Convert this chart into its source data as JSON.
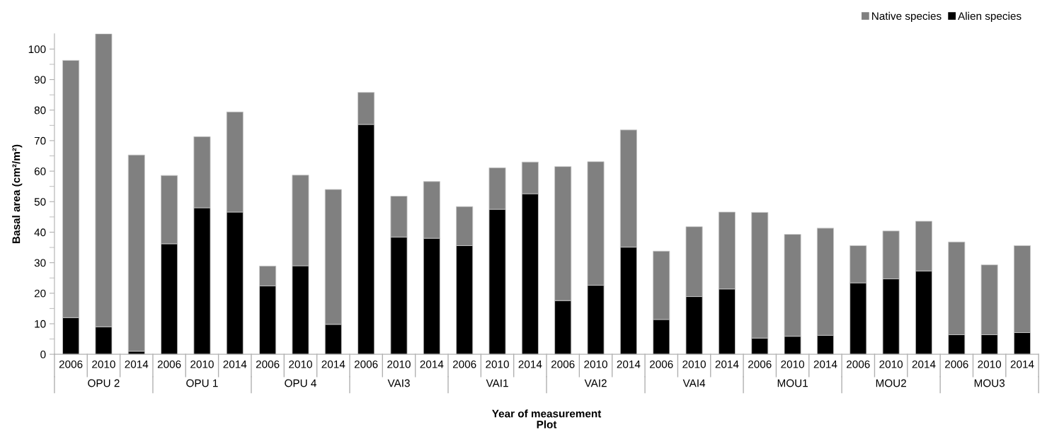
{
  "chart_data": {
    "type": "bar",
    "stacked": true,
    "xlabel": "Year of measurement\nPlot",
    "ylabel": "Basal area (cm²/m²)",
    "categories": [
      "2006",
      "2010",
      "2014",
      "2006",
      "2010",
      "2014",
      "2006",
      "2010",
      "2014",
      "2006",
      "2010",
      "2014",
      "2006",
      "2010",
      "2014",
      "2006",
      "2010",
      "2014",
      "2006",
      "2010",
      "2014",
      "2006",
      "2010",
      "2014",
      "2006",
      "2010",
      "2014",
      "2006",
      "2010",
      "2014"
    ],
    "series": [
      {
        "name": "Alien species",
        "color": "#000000",
        "values": [
          12,
          9,
          1,
          36.2,
          48,
          46.6,
          22.4,
          29,
          9.8,
          75.3,
          38.4,
          38,
          35.6,
          47.5,
          52.6,
          17.6,
          22.6,
          35.1,
          11.4,
          18.9,
          21.4,
          5.3,
          5.9,
          6.2,
          23.4,
          24.7,
          27.3,
          6.4,
          6.4,
          7.1
        ]
      },
      {
        "name": "Native species",
        "color": "#808080",
        "values": [
          84.3,
          96,
          64.3,
          22.4,
          23.3,
          32.8,
          6.5,
          29.7,
          44.2,
          10.5,
          13.4,
          18.6,
          12.8,
          13.6,
          10.4,
          43.9,
          40.5,
          38.4,
          22.4,
          22.9,
          25.2,
          41.2,
          33.4,
          35.1,
          12.2,
          15.7,
          16.3,
          30.4,
          22.9,
          28.5
        ]
      }
    ],
    "annotations": [
      "OPU 2",
      "OPU 1",
      "OPU 4",
      "VAI3",
      "VAI1",
      "VAI2",
      "VAI4",
      "MOU1",
      "MOU2",
      "MOU3"
    ],
    "ylim": [
      0,
      105
    ],
    "yticks": [
      0,
      10,
      20,
      30,
      40,
      50,
      60,
      70,
      80,
      90,
      100
    ],
    "grid": false,
    "legend": "top right"
  }
}
